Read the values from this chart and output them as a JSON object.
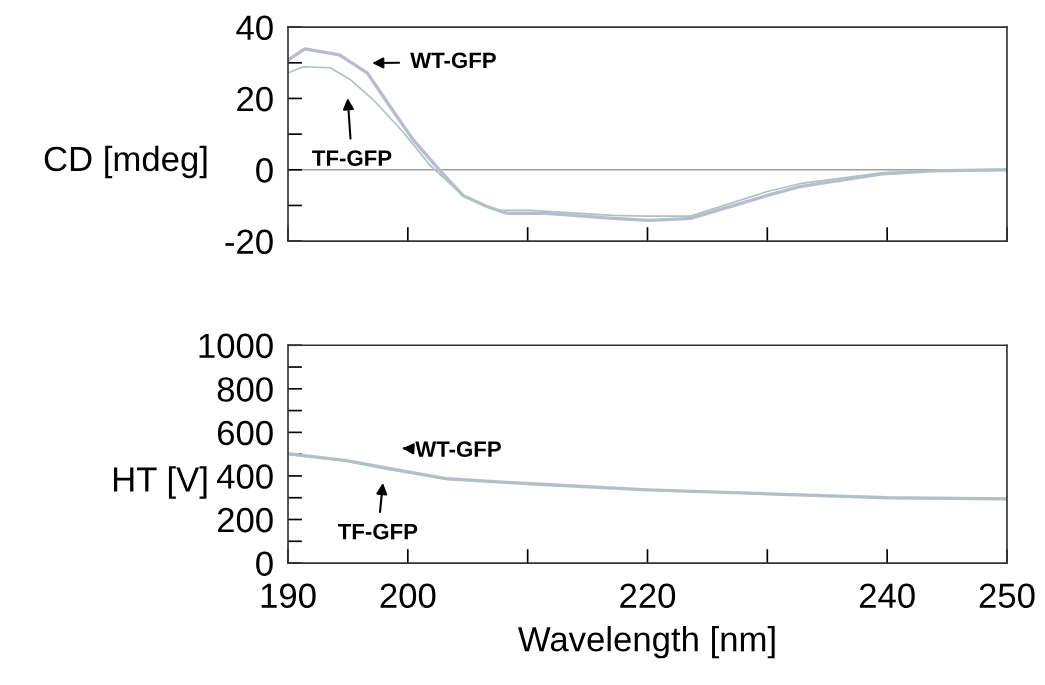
{
  "chart_data": [
    {
      "type": "line",
      "ylabel": "CD [mdeg]",
      "xlim": [
        190,
        250
      ],
      "ylim": [
        -20,
        40
      ],
      "xticks": [
        {
          "value": 190,
          "label": null
        },
        {
          "value": 200,
          "label": null
        },
        {
          "value": 210,
          "label": null
        },
        {
          "value": 220,
          "label": null
        },
        {
          "value": 230,
          "label": null
        },
        {
          "value": 240,
          "label": null
        },
        {
          "value": 250,
          "label": null
        }
      ],
      "yticks": [
        -20,
        {
          "value": -10,
          "label": null
        },
        0,
        {
          "value": 10,
          "label": null
        },
        20,
        {
          "value": 30,
          "label": null
        },
        40
      ],
      "tick_labels": "y",
      "grid": false,
      "marker": "none",
      "line_style": "solid",
      "ref_lines": [
        {
          "axis": "y",
          "value": 0,
          "label": null,
          "color": "#a0a0a0"
        }
      ],
      "annotations": [
        "WT-GFP",
        "TF-GFP"
      ],
      "series": [
        {
          "color": "#b8bcd2",
          "x": [
            190,
            191.4,
            194.3,
            196.6,
            198.5,
            200.4,
            202.7,
            204.6,
            206.6,
            208.3,
            211.6,
            217.1,
            220.2,
            223.6,
            230,
            232.7,
            239.7,
            243.8,
            250
          ],
          "values": [
            30.8,
            33.9,
            32.2,
            27.2,
            17.8,
            8.6,
            -0.3,
            -7.2,
            -10.3,
            -12.2,
            -12.2,
            -13.6,
            -14.2,
            -13.6,
            -7.2,
            -4.7,
            -1.1,
            -0.3,
            0
          ]
        },
        {
          "color": "#a9c6bc",
          "x": [
            190,
            191.3,
            193.5,
            195.2,
            197.1,
            199.6,
            201.9,
            204.6,
            207.4,
            210.2,
            217.1,
            220,
            223.6,
            230,
            232.7,
            239.7,
            243.8,
            250
          ],
          "values": [
            27.2,
            28.9,
            28.6,
            25.3,
            19.7,
            10.6,
            1.1,
            -7.2,
            -11.4,
            -11.4,
            -12.8,
            -13,
            -13,
            -6.1,
            -3.9,
            -0.8,
            -0.3,
            0
          ]
        }
      ]
    },
    {
      "type": "line",
      "ylabel": "HT [V]",
      "xlabel": "Wavelength [nm]",
      "xlim": [
        190,
        250
      ],
      "ylim": [
        0,
        1000
      ],
      "xticks": [
        190,
        200,
        {
          "value": 210,
          "label": null
        },
        220,
        {
          "value": 230,
          "label": null
        },
        240,
        250
      ],
      "yticks": [
        0,
        {
          "value": 100,
          "label": null
        },
        200,
        {
          "value": 300,
          "label": null
        },
        400,
        {
          "value": 500,
          "label": null
        },
        600,
        {
          "value": 700,
          "label": null
        },
        800,
        {
          "value": 900,
          "label": null
        },
        1000
      ],
      "grid": false,
      "marker": "none",
      "line_style": "solid",
      "annotations": [
        "WT-GFP",
        "TF-GFP"
      ],
      "series": [
        {
          "color": "#b8bcd2",
          "x": [
            190,
            194.9,
            198.5,
            203.3,
            210.2,
            220,
            230,
            240,
            250
          ],
          "values": [
            502,
            470,
            433,
            387,
            364,
            336,
            318,
            300,
            295
          ]
        },
        {
          "color": "#a9c6bc",
          "x": [
            190,
            194.9,
            198.5,
            203.3,
            210.2,
            220,
            230,
            240,
            250
          ],
          "values": [
            500,
            468,
            430,
            386,
            363,
            336,
            318,
            300,
            295
          ]
        }
      ]
    }
  ]
}
